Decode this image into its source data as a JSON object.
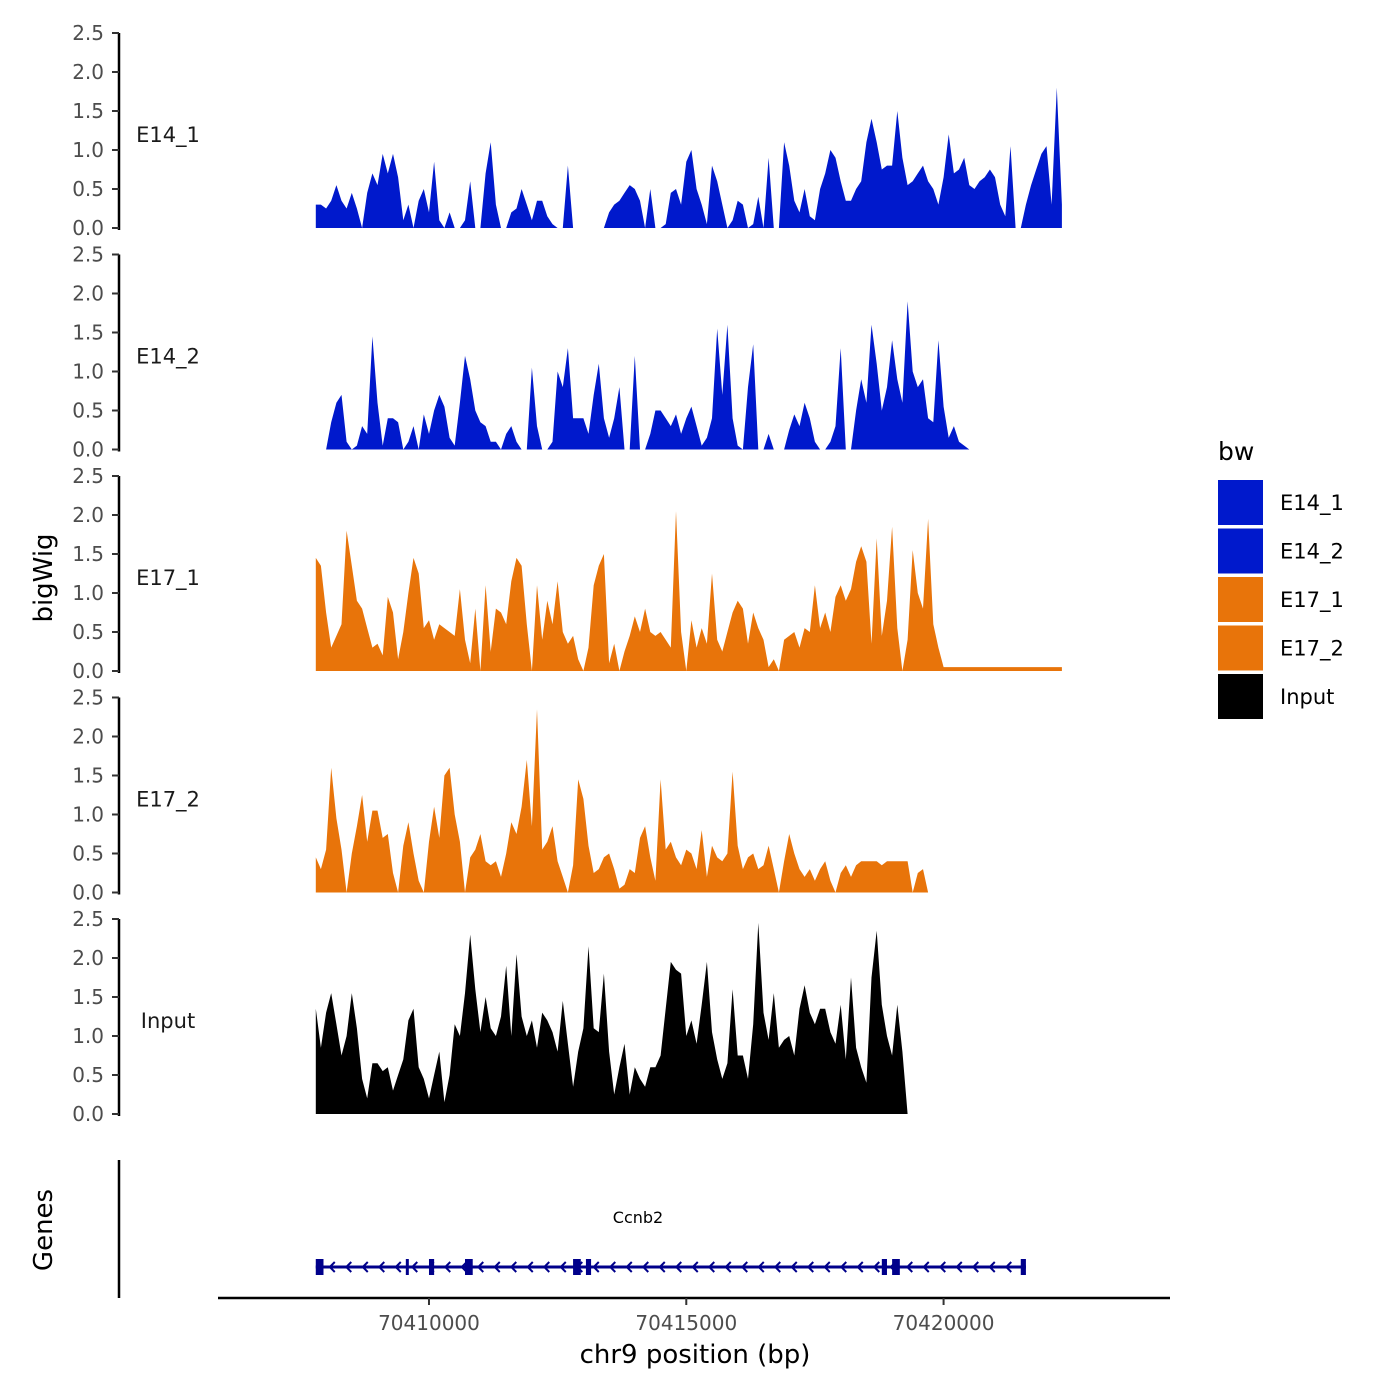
{
  "chart_data": {
    "type": "area",
    "title": "",
    "ylabel": "bigWig",
    "xlabel": "chr9 position (bp)",
    "genes_label": "Genes",
    "region": {
      "chrom": "chr9",
      "start": 70407800,
      "end": 70423500
    },
    "xlim": [
      70405900,
      70424400
    ],
    "x_ticks": [
      70410000,
      70415000,
      70420000
    ],
    "x_tick_labels": [
      "70410000",
      "70415000",
      "70420000"
    ],
    "ylim": [
      0,
      2.5
    ],
    "y_ticks": [
      0,
      0.5,
      1,
      1.5,
      2,
      2.5
    ],
    "y_tick_labels": [
      "0.0",
      "0.5",
      "1.0",
      "1.5",
      "2.0",
      "2.5"
    ],
    "legend": {
      "title": "bw",
      "position": "right",
      "entries": [
        {
          "label": "E14_1",
          "color": "#0019CC"
        },
        {
          "label": "E14_2",
          "color": "#0019CC"
        },
        {
          "label": "E17_1",
          "color": "#E8740A"
        },
        {
          "label": "E17_2",
          "color": "#E8740A"
        },
        {
          "label": "Input",
          "color": "#000000"
        }
      ]
    },
    "series": [
      {
        "name": "E14_1",
        "color": "#0019CC",
        "x_start": 70407800,
        "x_step": 100,
        "values": [
          0.3,
          0.3,
          0.25,
          0.35,
          0.55,
          0.35,
          0.25,
          0.45,
          0.25,
          0.0,
          0.45,
          0.7,
          0.55,
          0.95,
          0.7,
          0.95,
          0.65,
          0.1,
          0.3,
          0.0,
          0.35,
          0.5,
          0.2,
          0.85,
          0.1,
          0.0,
          0.2,
          0.0,
          0.0,
          0.1,
          0.6,
          0.0,
          0.0,
          0.7,
          1.1,
          0.3,
          0.0,
          0.0,
          0.2,
          0.25,
          0.5,
          0.3,
          0.1,
          0.35,
          0.35,
          0.15,
          0.05,
          0.0,
          0.0,
          0.8,
          0.0,
          0.0,
          0.0,
          0.0,
          0.0,
          0.0,
          0.0,
          0.2,
          0.3,
          0.35,
          0.45,
          0.55,
          0.5,
          0.35,
          0.0,
          0.5,
          0.0,
          0.0,
          0.05,
          0.45,
          0.5,
          0.3,
          0.85,
          1.0,
          0.5,
          0.3,
          0.05,
          0.8,
          0.6,
          0.3,
          0.0,
          0.1,
          0.35,
          0.3,
          0.0,
          0.05,
          0.4,
          0.0,
          0.9,
          0.0,
          0.0,
          1.1,
          0.8,
          0.35,
          0.2,
          0.5,
          0.15,
          0.1,
          0.5,
          0.7,
          1.0,
          0.9,
          0.6,
          0.35,
          0.35,
          0.5,
          0.6,
          1.1,
          1.4,
          1.1,
          0.75,
          0.8,
          0.8,
          1.5,
          0.9,
          0.55,
          0.6,
          0.7,
          0.8,
          0.6,
          0.5,
          0.3,
          0.65,
          1.2,
          0.7,
          0.75,
          0.9,
          0.55,
          0.5,
          0.6,
          0.65,
          0.75,
          0.65,
          0.3,
          0.15,
          1.05,
          0.0,
          0.0,
          0.3,
          0.55,
          0.75,
          0.95,
          1.05,
          0.3,
          1.8,
          0.3
        ]
      },
      {
        "name": "E14_2",
        "color": "#0019CC",
        "x_start": 70407800,
        "x_step": 100,
        "values": [
          0.0,
          0.0,
          0.0,
          0.35,
          0.6,
          0.7,
          0.1,
          0.0,
          0.05,
          0.3,
          0.2,
          1.45,
          0.6,
          0.05,
          0.4,
          0.4,
          0.35,
          0.0,
          0.1,
          0.3,
          0.0,
          0.45,
          0.2,
          0.5,
          0.7,
          0.55,
          0.15,
          0.05,
          0.6,
          1.2,
          0.9,
          0.5,
          0.35,
          0.3,
          0.1,
          0.1,
          0.0,
          0.2,
          0.3,
          0.1,
          0.0,
          0.0,
          1.05,
          0.3,
          0.0,
          0.0,
          0.1,
          1.0,
          0.8,
          1.3,
          0.4,
          0.4,
          0.4,
          0.2,
          0.7,
          1.1,
          0.4,
          0.15,
          0.4,
          0.8,
          0.0,
          0.0,
          1.2,
          0.0,
          0.0,
          0.2,
          0.5,
          0.5,
          0.4,
          0.3,
          0.45,
          0.2,
          0.4,
          0.55,
          0.3,
          0.05,
          0.15,
          0.4,
          1.55,
          0.7,
          1.6,
          0.4,
          0.05,
          0.0,
          0.8,
          1.35,
          0.0,
          0.0,
          0.2,
          0.0,
          0.0,
          0.0,
          0.25,
          0.45,
          0.3,
          0.6,
          0.4,
          0.1,
          0.0,
          0.0,
          0.1,
          0.3,
          1.3,
          0.0,
          0.0,
          0.5,
          0.9,
          0.6,
          1.6,
          1.1,
          0.5,
          0.8,
          1.4,
          0.9,
          0.6,
          1.9,
          1.0,
          0.8,
          0.9,
          0.4,
          0.35,
          1.4,
          0.55,
          0.15,
          0.3,
          0.1,
          0.05,
          0.0,
          0.0,
          0.0,
          0.0,
          0.0,
          0.0,
          0.0,
          0.0,
          0.0,
          0.0,
          0.0,
          0.0,
          0.0,
          0.0,
          0.0,
          0.0,
          0.0,
          0.0,
          0.0,
          0.0,
          0.0
        ]
      },
      {
        "name": "E17_1",
        "color": "#E8740A",
        "x_start": 70407800,
        "x_step": 100,
        "values": [
          1.45,
          1.35,
          0.75,
          0.3,
          0.45,
          0.6,
          1.8,
          1.35,
          0.9,
          0.8,
          0.55,
          0.3,
          0.35,
          0.2,
          0.95,
          0.75,
          0.15,
          0.5,
          1.0,
          1.45,
          1.25,
          0.55,
          0.65,
          0.4,
          0.6,
          0.55,
          0.5,
          0.45,
          1.05,
          0.4,
          0.1,
          0.8,
          0.0,
          1.1,
          0.25,
          0.8,
          0.75,
          0.6,
          1.15,
          1.45,
          1.35,
          0.6,
          0.0,
          1.1,
          0.4,
          0.9,
          0.6,
          1.15,
          0.5,
          0.35,
          0.45,
          0.15,
          0.0,
          0.3,
          1.1,
          1.35,
          1.5,
          0.1,
          0.35,
          0.0,
          0.25,
          0.45,
          0.7,
          0.5,
          0.8,
          0.5,
          0.45,
          0.5,
          0.4,
          0.3,
          2.05,
          0.5,
          0.0,
          0.65,
          0.3,
          0.55,
          0.35,
          1.25,
          0.4,
          0.25,
          0.5,
          0.75,
          0.9,
          0.8,
          0.35,
          0.75,
          0.55,
          0.4,
          0.05,
          0.15,
          0.0,
          0.4,
          0.45,
          0.5,
          0.3,
          0.55,
          0.5,
          1.1,
          0.55,
          0.75,
          0.5,
          0.95,
          1.1,
          0.9,
          1.05,
          1.4,
          1.6,
          1.4,
          0.35,
          1.7,
          0.45,
          0.9,
          1.85,
          0.55,
          0.0,
          0.4,
          1.55,
          1.0,
          0.8,
          1.95,
          0.6,
          0.3,
          0.05,
          0.05,
          0.05,
          0.05,
          0.05,
          0.05,
          0.05,
          0.05,
          0.05,
          0.05,
          0.05,
          0.05,
          0.05,
          0.05,
          0.05,
          0.05,
          0.05,
          0.05,
          0.05,
          0.05,
          0.05,
          0.05,
          0.05,
          0.05
        ]
      },
      {
        "name": "E17_2",
        "color": "#E8740A",
        "x_start": 70407800,
        "x_step": 100,
        "values": [
          0.45,
          0.3,
          0.55,
          1.6,
          0.95,
          0.55,
          0.0,
          0.5,
          0.85,
          1.25,
          0.65,
          1.05,
          1.05,
          0.7,
          0.75,
          0.25,
          0.0,
          0.6,
          0.9,
          0.5,
          0.15,
          0.0,
          0.65,
          1.1,
          0.7,
          1.5,
          1.6,
          1.0,
          0.65,
          0.0,
          0.45,
          0.55,
          0.75,
          0.4,
          0.35,
          0.4,
          0.2,
          0.5,
          0.9,
          0.75,
          1.1,
          1.7,
          0.85,
          2.35,
          0.55,
          0.65,
          0.85,
          0.4,
          0.2,
          0.0,
          0.35,
          1.45,
          1.2,
          0.6,
          0.25,
          0.3,
          0.45,
          0.5,
          0.3,
          0.05,
          0.1,
          0.3,
          0.25,
          0.7,
          0.85,
          0.45,
          0.15,
          1.45,
          0.55,
          0.65,
          0.45,
          0.35,
          0.55,
          0.5,
          0.3,
          0.8,
          0.2,
          0.6,
          0.45,
          0.4,
          0.5,
          1.55,
          0.6,
          0.3,
          0.45,
          0.5,
          0.3,
          0.35,
          0.6,
          0.3,
          0.0,
          0.4,
          0.75,
          0.5,
          0.3,
          0.2,
          0.3,
          0.15,
          0.3,
          0.4,
          0.15,
          0.0,
          0.25,
          0.35,
          0.2,
          0.35,
          0.4,
          0.4,
          0.4,
          0.4,
          0.35,
          0.4,
          0.4,
          0.4,
          0.4,
          0.4,
          0.0,
          0.25,
          0.3,
          0.0,
          0.0,
          0.0,
          0.0,
          0.0,
          0.0,
          0.0,
          0.0,
          0.0,
          0.0,
          0.0,
          0.0,
          0.0,
          0.0,
          0.0,
          0.0,
          0.0,
          0.0,
          0.0,
          0.0,
          0.0,
          0.0,
          0.0,
          0.0,
          0.0,
          0.0,
          0.0
        ]
      },
      {
        "name": "Input",
        "color": "#000000",
        "x_start": 70407800,
        "x_step": 100,
        "values": [
          1.35,
          0.85,
          1.3,
          1.55,
          1.15,
          0.75,
          1.0,
          1.55,
          1.1,
          0.45,
          0.2,
          0.65,
          0.65,
          0.55,
          0.6,
          0.3,
          0.5,
          0.7,
          1.2,
          1.35,
          0.6,
          0.45,
          0.2,
          0.5,
          0.8,
          0.15,
          0.5,
          1.15,
          1.0,
          1.55,
          2.3,
          1.6,
          1.05,
          1.5,
          1.1,
          1.0,
          1.25,
          1.9,
          1.0,
          2.05,
          1.25,
          1.0,
          1.2,
          0.85,
          1.3,
          1.2,
          1.05,
          0.8,
          1.45,
          0.9,
          0.35,
          0.8,
          1.1,
          2.15,
          1.1,
          1.05,
          1.8,
          0.8,
          0.25,
          0.6,
          0.9,
          0.25,
          0.6,
          0.45,
          0.35,
          0.6,
          0.6,
          0.75,
          1.35,
          1.95,
          1.85,
          1.8,
          1.0,
          1.2,
          0.9,
          1.4,
          1.95,
          1.05,
          0.7,
          0.45,
          0.65,
          1.6,
          0.75,
          0.75,
          0.45,
          1.15,
          2.45,
          1.3,
          0.95,
          1.55,
          0.85,
          0.95,
          1.0,
          0.75,
          1.35,
          1.65,
          1.3,
          1.15,
          1.35,
          1.35,
          1.05,
          0.9,
          1.4,
          0.7,
          1.75,
          0.85,
          0.6,
          0.4,
          1.75,
          2.35,
          1.4,
          1.0,
          0.75,
          1.4,
          0.8,
          0.0,
          0.0,
          0.0,
          0.0,
          0.0,
          0.0,
          0.0,
          0.0,
          0.0,
          0.0,
          0.0,
          0.0,
          0.0,
          0.0,
          0.0,
          0.0,
          0.0,
          0.0,
          0.0,
          0.0,
          0.0,
          0.0,
          0.0,
          0.0,
          0.0,
          0.0,
          0.0,
          0.0,
          0.0
        ]
      }
    ],
    "genes": [
      {
        "name": "Ccnb2",
        "strand": "-",
        "start": 70407800,
        "end": 70421600,
        "exons": [
          [
            70407800,
            70407950
          ],
          [
            70409550,
            70409600
          ],
          [
            70410000,
            70410100
          ],
          [
            70410700,
            70410850
          ],
          [
            70412800,
            70412950
          ],
          [
            70413050,
            70413150
          ],
          [
            70418800,
            70418900
          ],
          [
            70419000,
            70419150
          ],
          [
            70421500,
            70421600
          ]
        ]
      }
    ]
  }
}
